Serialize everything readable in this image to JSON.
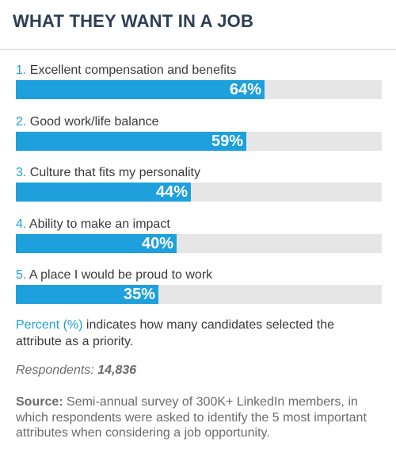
{
  "title": "WHAT THEY WANT IN A JOB",
  "chart_data": {
    "type": "bar",
    "orientation": "horizontal",
    "categories": [
      "Excellent compensation and benefits",
      "Good work/life balance",
      "Culture that fits my personality",
      "Ability to make an impact",
      "A place I would be proud to work"
    ],
    "ranks": [
      "1.",
      "2.",
      "3.",
      "4.",
      "5."
    ],
    "values": [
      64,
      59,
      44,
      40,
      35
    ],
    "value_labels": [
      "64%",
      "59%",
      "44%",
      "40%",
      "35%"
    ],
    "unit": "%",
    "bar_color": "#1ea0dc",
    "track_color": "#e6e6e6",
    "label_color": "#1ea0dc"
  },
  "note": {
    "key": "Percent (%)",
    "text": " indicates how many candidates selected the attribute as a priority."
  },
  "respondents": {
    "label": "Respondents: ",
    "count": "14,836"
  },
  "source": {
    "label": "Source:",
    "text": " Semi-annual survey of 300K+ LinkedIn members, in which respondents were asked to identify the 5 most important attributes when considering a job opportunity."
  },
  "colors": {
    "title": "#2c3e57",
    "accent": "#1ea0dc",
    "body_text": "#3a3a3a",
    "muted_text": "#6b6b6b"
  }
}
